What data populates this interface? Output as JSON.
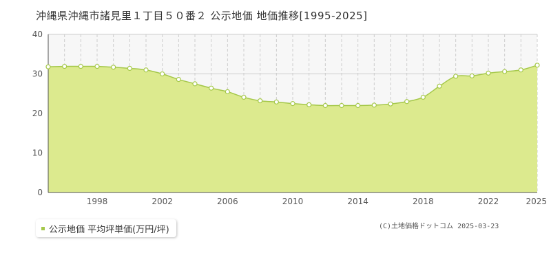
{
  "colors": {
    "fill": "#dcea8e",
    "line": "#a5c84a",
    "point_fill": "#ffffff",
    "grid_solid": "#cccccc",
    "grid_dashed": "#cccccc",
    "legend_swatch": "#a5c84a",
    "band": "#f7f7f7"
  },
  "legend": {
    "label": "公示地価 平均坪単価(万円/坪)"
  },
  "copyright": "(C)土地価格ドットコム 2025-03-23",
  "chart_data": {
    "type": "area",
    "title": "沖縄県沖縄市諸見里１丁目５０番２ 公示地価 地価推移[1995-2025]",
    "xlabel": "",
    "ylabel": "",
    "xlim": [
      1995,
      2025
    ],
    "ylim": [
      0,
      40
    ],
    "y_ticks": [
      0,
      10,
      20,
      30,
      40
    ],
    "x_ticks": [
      1998,
      2002,
      2006,
      2010,
      2014,
      2018,
      2022,
      2025
    ],
    "grid": true,
    "series": [
      {
        "x": [
          1995,
          1996,
          1997,
          1998,
          1999,
          2000,
          2001,
          2002,
          2003,
          2004,
          2005,
          2006,
          2007,
          2008,
          2009,
          2010,
          2011,
          2012,
          2013,
          2014,
          2015,
          2016,
          2017,
          2018,
          2019,
          2020,
          2021,
          2022,
          2023,
          2024,
          2025
        ],
        "values": [
          31.8,
          31.9,
          31.9,
          31.9,
          31.7,
          31.4,
          31.0,
          30.0,
          28.6,
          27.5,
          26.4,
          25.5,
          24.1,
          23.2,
          22.9,
          22.5,
          22.2,
          22.0,
          22.0,
          22.0,
          22.1,
          22.4,
          23.0,
          24.1,
          26.9,
          29.4,
          29.5,
          30.2,
          30.6,
          31.0,
          32.2
        ]
      }
    ]
  }
}
